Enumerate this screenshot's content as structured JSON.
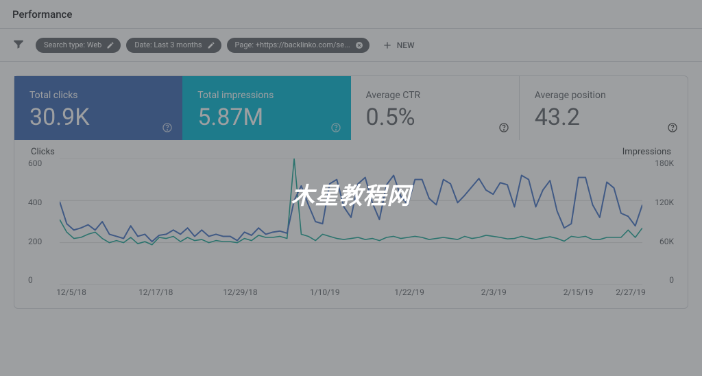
{
  "header": {
    "title": "Performance"
  },
  "filters": {
    "chips": [
      {
        "label": "Search type: Web",
        "icon": "pencil"
      },
      {
        "label": "Date: Last 3 months",
        "icon": "pencil"
      },
      {
        "label": "Page: +https://backlinko.com/se...",
        "icon": "close"
      }
    ],
    "new_label": "NEW"
  },
  "metrics": [
    {
      "label": "Total clicks",
      "value": "30.9K",
      "style": "blue"
    },
    {
      "label": "Total impressions",
      "value": "5.87M",
      "style": "teal"
    },
    {
      "label": "Average CTR",
      "value": "0.5%",
      "style": "plain"
    },
    {
      "label": "Average position",
      "value": "43.2",
      "style": "plain"
    }
  ],
  "chart": {
    "left_axis_title": "Clicks",
    "right_axis_title": "Impressions",
    "left_ticks": [
      "600",
      "400",
      "200",
      "0"
    ],
    "right_ticks": [
      "180K",
      "120K",
      "60K",
      "0"
    ],
    "left_range": [
      0,
      600
    ],
    "right_range": [
      0,
      180000
    ],
    "x_ticks": [
      {
        "pos": 0.02,
        "label": "12/5/18"
      },
      {
        "pos": 0.165,
        "label": "12/17/18"
      },
      {
        "pos": 0.31,
        "label": "12/29/18"
      },
      {
        "pos": 0.455,
        "label": "1/10/19"
      },
      {
        "pos": 0.6,
        "label": "1/22/19"
      },
      {
        "pos": 0.745,
        "label": "2/3/19"
      },
      {
        "pos": 0.89,
        "label": "2/15/19"
      },
      {
        "pos": 0.98,
        "label": "2/27/19"
      }
    ],
    "grid_color": "#e0e0e0",
    "series": {
      "clicks": {
        "color": "#4472c4",
        "width": 2,
        "values": [
          395,
          290,
          260,
          270,
          285,
          260,
          300,
          240,
          230,
          220,
          280,
          230,
          240,
          205,
          235,
          240,
          260,
          240,
          270,
          230,
          260,
          230,
          240,
          230,
          230,
          210,
          250,
          235,
          270,
          240,
          250,
          255,
          245,
          400,
          470,
          380,
          300,
          290,
          480,
          500,
          370,
          320,
          480,
          510,
          390,
          310,
          475,
          520,
          420,
          380,
          500,
          500,
          410,
          380,
          500,
          480,
          390,
          425,
          465,
          505,
          450,
          430,
          485,
          475,
          370,
          520,
          500,
          370,
          450,
          495,
          350,
          270,
          290,
          510,
          510,
          380,
          320,
          488,
          460,
          340,
          325,
          280,
          380
        ]
      },
      "impressions": {
        "color": "#1aa696",
        "width": 1.6,
        "values": [
          310,
          250,
          220,
          225,
          240,
          250,
          220,
          200,
          210,
          200,
          225,
          195,
          205,
          190,
          225,
          220,
          230,
          205,
          225,
          210,
          215,
          200,
          210,
          205,
          205,
          200,
          220,
          210,
          235,
          225,
          225,
          230,
          220,
          600,
          240,
          230,
          210,
          240,
          230,
          220,
          215,
          220,
          225,
          215,
          220,
          210,
          225,
          230,
          220,
          225,
          230,
          225,
          215,
          220,
          225,
          220,
          215,
          230,
          220,
          225,
          235,
          230,
          225,
          218,
          220,
          230,
          222,
          215,
          222,
          228,
          220,
          207,
          230,
          225,
          230,
          215,
          215,
          225,
          225,
          225,
          260,
          225,
          270
        ]
      }
    }
  },
  "watermark": "木星教程网",
  "colors": {
    "metric_blue": "#3a66b0",
    "metric_teal": "#00b6d3",
    "text_muted": "#5f6368"
  }
}
